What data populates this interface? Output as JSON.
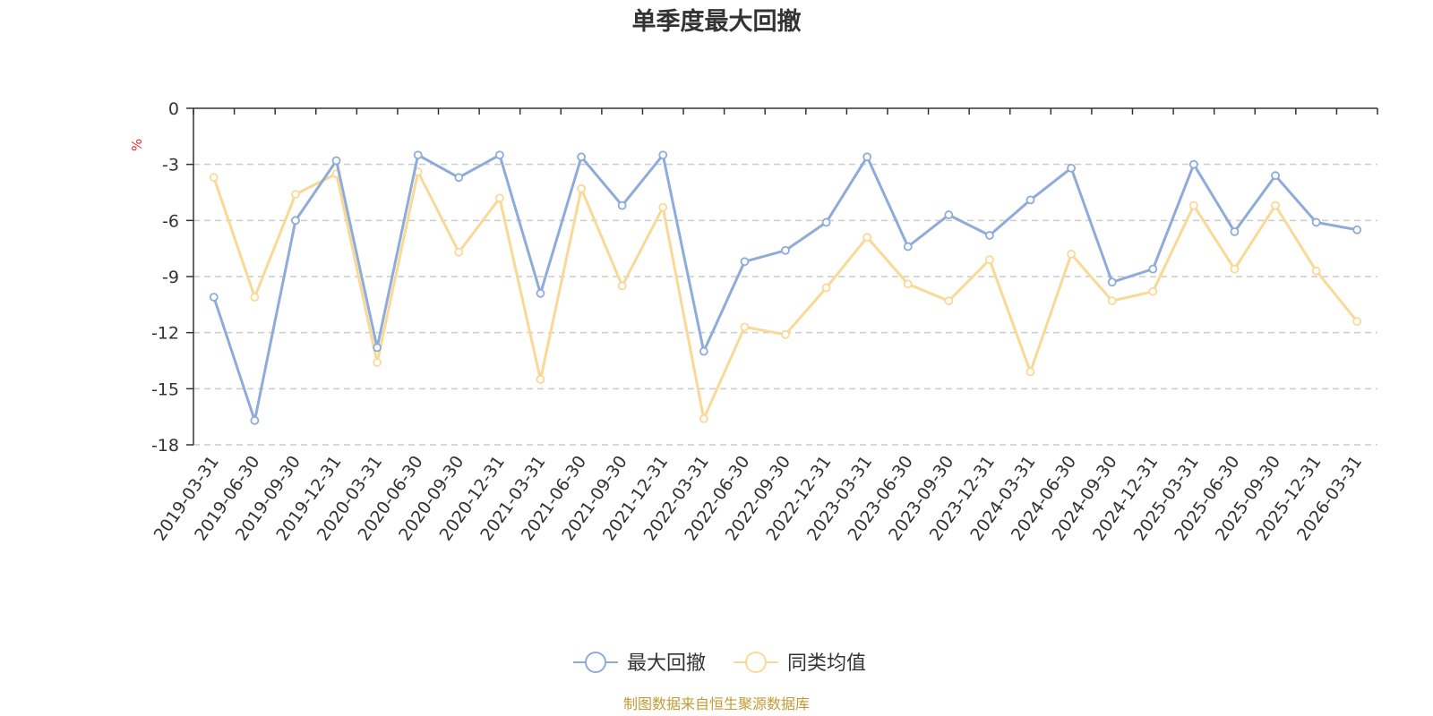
{
  "colors": {
    "series1": "#8eabd9",
    "series2": "#fad996",
    "grid": "#cccccc",
    "axis": "#333333",
    "unit": "#e0312f",
    "source": "#c39a36"
  },
  "chart_data": {
    "type": "line",
    "title": "单季度最大回撤",
    "ylabel": "%",
    "xlabel": "",
    "ylim": [
      -18,
      0
    ],
    "yticks": [
      0,
      -3,
      -6,
      -9,
      -12,
      -15,
      -18
    ],
    "grid": true,
    "legend_position": "bottom-center",
    "categories": [
      "2019-03-31",
      "2019-06-30",
      "2019-09-30",
      "2019-12-31",
      "2020-03-31",
      "2020-06-30",
      "2020-09-30",
      "2020-12-31",
      "2021-03-31",
      "2021-06-30",
      "2021-09-30",
      "2021-12-31",
      "2022-03-31",
      "2022-06-30",
      "2022-09-30",
      "2022-12-31",
      "2023-03-31",
      "2023-06-30",
      "2023-09-30",
      "2023-12-31",
      "2024-03-31",
      "2024-06-30",
      "2024-09-30",
      "2024-12-31",
      "2025-03-31",
      "2025-06-30",
      "2025-09-30",
      "2025-12-31",
      "2026-03-31"
    ],
    "series": [
      {
        "name": "最大回撤",
        "values": [
          -10.1,
          -16.7,
          -6.0,
          -2.8,
          -12.8,
          -2.5,
          -3.7,
          -2.5,
          -9.9,
          -2.6,
          -5.2,
          -2.5,
          -13.0,
          -8.2,
          -7.6,
          -6.1,
          -2.6,
          -7.4,
          -5.7,
          -6.8,
          -4.9,
          -3.2,
          -9.3,
          -8.6,
          -3.0,
          -6.6,
          -3.6,
          -6.1,
          -6.5
        ]
      },
      {
        "name": "同类均值",
        "values": [
          -3.7,
          -10.1,
          -4.6,
          -3.5,
          -13.6,
          -3.4,
          -7.7,
          -4.8,
          -14.5,
          -4.3,
          -9.5,
          -5.3,
          -16.6,
          -11.7,
          -12.1,
          -9.6,
          -6.9,
          -9.4,
          -10.3,
          -8.1,
          -14.1,
          -7.8,
          -10.3,
          -9.8,
          -5.2,
          -8.6,
          -5.2,
          -8.7,
          -11.4
        ]
      }
    ]
  },
  "legend": [
    {
      "label": "最大回撤"
    },
    {
      "label": "同类均值"
    }
  ],
  "footer": {
    "source": "制图数据来自恒生聚源数据库"
  }
}
